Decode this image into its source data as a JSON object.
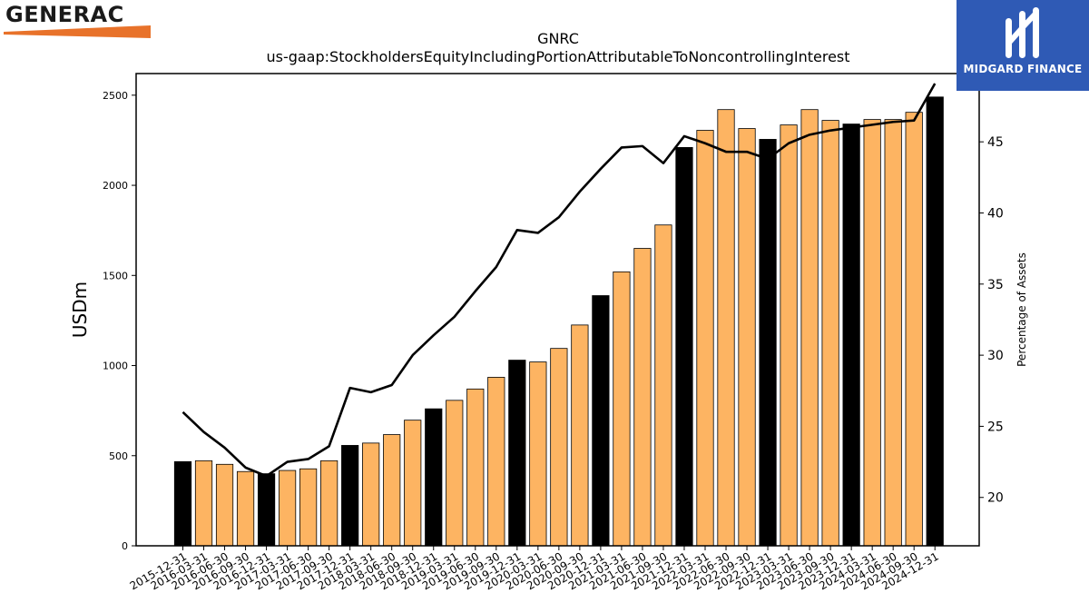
{
  "logos": {
    "left": {
      "name": "GENERAC",
      "accent_color": "#e8722a"
    },
    "right": {
      "name": "MIDGARD FINANCE",
      "bg_color": "#2f5ab5"
    }
  },
  "chart_data": {
    "type": "bar",
    "title": "GNRC",
    "subtitle": "us-gaap:StockholdersEquityIncludingPortionAttributableToNoncontrollingInterest",
    "ylabel": "USDm",
    "y2label": "Percentage of Assets",
    "ylim": [
      0,
      2620
    ],
    "y2lim": [
      16.6,
      49.8
    ],
    "yticks": [
      0,
      500,
      1000,
      1500,
      2000,
      2500
    ],
    "y2ticks": [
      20,
      25,
      30,
      35,
      40,
      45
    ],
    "grid": false,
    "colors": {
      "quarter": "#fdb462",
      "year_end": "#000000",
      "line": "#000000"
    },
    "categories": [
      "2015-12-31",
      "2016-03-31",
      "2016-06-30",
      "2016-09-30",
      "2016-12-31",
      "2017-03-31",
      "2017-06-30",
      "2017-09-30",
      "2017-12-31",
      "2018-03-31",
      "2018-06-30",
      "2018-09-30",
      "2018-12-31",
      "2019-03-31",
      "2019-06-30",
      "2019-09-30",
      "2019-12-31",
      "2020-03-31",
      "2020-06-30",
      "2020-09-30",
      "2020-12-31",
      "2021-03-31",
      "2021-06-30",
      "2021-09-30",
      "2021-12-31",
      "2022-03-31",
      "2022-06-30",
      "2022-09-30",
      "2022-12-31",
      "2023-03-31",
      "2023-06-30",
      "2023-09-30",
      "2023-12-31",
      "2024-03-31",
      "2024-06-30",
      "2024-09-30",
      "2024-12-31"
    ],
    "series": [
      {
        "kind": "bar",
        "values": [
          467,
          472,
          452,
          412,
          400,
          418,
          427,
          472,
          557,
          570,
          617,
          697,
          760,
          807,
          870,
          935,
          1030,
          1020,
          1095,
          1225,
          1388,
          1520,
          1650,
          1780,
          2210,
          2305,
          2420,
          2315,
          2255,
          2335,
          2420,
          2360,
          2340,
          2365,
          2365,
          2405,
          2490
        ],
        "year_end": [
          true,
          false,
          false,
          false,
          true,
          false,
          false,
          false,
          true,
          false,
          false,
          false,
          true,
          false,
          false,
          false,
          true,
          false,
          false,
          false,
          true,
          false,
          false,
          false,
          true,
          false,
          false,
          false,
          true,
          false,
          false,
          false,
          true,
          false,
          false,
          false,
          true
        ]
      },
      {
        "kind": "line",
        "axis": "right",
        "values": [
          26.0,
          24.6,
          23.5,
          22.1,
          21.5,
          22.5,
          22.7,
          23.6,
          27.7,
          27.4,
          27.9,
          30.0,
          31.4,
          32.7,
          34.5,
          36.2,
          38.8,
          38.6,
          39.7,
          41.5,
          43.1,
          44.6,
          44.7,
          43.5,
          45.4,
          44.9,
          44.3,
          44.3,
          43.8,
          44.9,
          45.5,
          45.8,
          46.0,
          46.2,
          46.4,
          46.5,
          49.1
        ]
      }
    ]
  }
}
